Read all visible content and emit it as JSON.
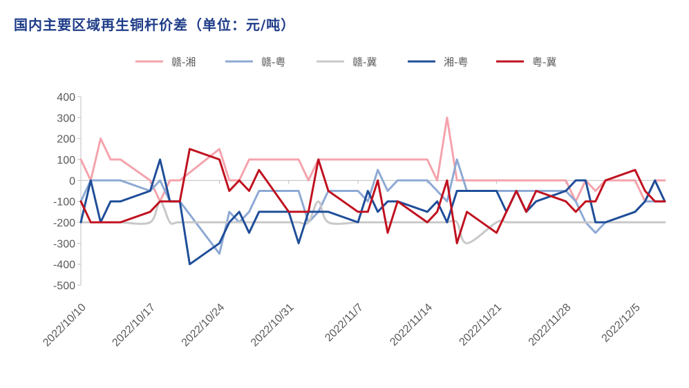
{
  "title": "国内主要区域再生铜杆价差（单位：元/吨）",
  "colors": {
    "title": "#1F3C88",
    "axis": "#BFBFBF",
    "tick_text": "#595959"
  },
  "chart_data": {
    "type": "line",
    "title": "国内主要区域再生铜杆价差（单位：元/吨）",
    "xlabel": "",
    "ylabel": "",
    "ylim": [
      -500,
      400
    ],
    "y_ticks": [
      400,
      300,
      200,
      100,
      0,
      -100,
      -200,
      -300,
      -400,
      -500
    ],
    "x_tick_labels": [
      "2022/10/10",
      "2022/10/17",
      "2022/10/24",
      "2022/10/31",
      "2022/11/7",
      "2022/11/14",
      "2022/11/21",
      "2022/11/28",
      "2022/12/5"
    ],
    "x_tick_dates": [
      "2022-10-10",
      "2022-10-17",
      "2022-10-24",
      "2022-10-31",
      "2022-11-07",
      "2022-11-14",
      "2022-11-21",
      "2022-11-28",
      "2022-12-05"
    ],
    "x_range": [
      "2022-10-10",
      "2022-12-08"
    ],
    "grid": false,
    "legend_position": "top",
    "series": [
      {
        "name": "赣-湘",
        "color": "#F4A3AC",
        "smooth": false,
        "x": [
          "2022-10-10",
          "2022-10-11",
          "2022-10-12",
          "2022-10-13",
          "2022-10-14",
          "2022-10-17",
          "2022-10-18",
          "2022-10-19",
          "2022-10-20",
          "2022-10-24",
          "2022-10-25",
          "2022-10-26",
          "2022-10-27",
          "2022-10-28",
          "2022-10-31",
          "2022-11-01",
          "2022-11-02",
          "2022-11-03",
          "2022-11-04",
          "2022-11-07",
          "2022-11-08",
          "2022-11-09",
          "2022-11-10",
          "2022-11-11",
          "2022-11-14",
          "2022-11-15",
          "2022-11-16",
          "2022-11-17",
          "2022-11-18",
          "2022-11-21",
          "2022-11-22",
          "2022-11-23",
          "2022-11-24",
          "2022-11-25",
          "2022-11-28",
          "2022-11-29",
          "2022-11-30",
          "2022-12-01",
          "2022-12-02",
          "2022-12-05",
          "2022-12-06",
          "2022-12-07",
          "2022-12-08"
        ],
        "y": [
          100,
          0,
          200,
          100,
          100,
          0,
          -100,
          0,
          0,
          150,
          0,
          0,
          100,
          100,
          100,
          100,
          0,
          100,
          100,
          100,
          100,
          100,
          100,
          100,
          100,
          0,
          300,
          0,
          0,
          0,
          0,
          0,
          0,
          0,
          0,
          -100,
          0,
          -50,
          0,
          0,
          -100,
          0,
          0
        ]
      },
      {
        "name": "赣-粤",
        "color": "#8EA9D4",
        "smooth": false,
        "x": [
          "2022-10-10",
          "2022-10-11",
          "2022-10-12",
          "2022-10-13",
          "2022-10-14",
          "2022-10-17",
          "2022-10-18",
          "2022-10-19",
          "2022-10-20",
          "2022-10-24",
          "2022-10-25",
          "2022-10-26",
          "2022-10-27",
          "2022-10-28",
          "2022-10-31",
          "2022-11-01",
          "2022-11-02",
          "2022-11-03",
          "2022-11-04",
          "2022-11-07",
          "2022-11-08",
          "2022-11-09",
          "2022-11-10",
          "2022-11-11",
          "2022-11-14",
          "2022-11-15",
          "2022-11-16",
          "2022-11-17",
          "2022-11-18",
          "2022-11-21",
          "2022-11-22",
          "2022-11-23",
          "2022-11-24",
          "2022-11-25",
          "2022-11-28",
          "2022-11-29",
          "2022-11-30",
          "2022-12-01",
          "2022-12-02",
          "2022-12-05",
          "2022-12-06",
          "2022-12-07",
          "2022-12-08"
        ],
        "y": [
          -100,
          0,
          0,
          0,
          0,
          -50,
          0,
          -100,
          -100,
          -350,
          -150,
          -200,
          -150,
          -50,
          -50,
          -50,
          -200,
          -150,
          -50,
          -50,
          -100,
          50,
          -50,
          0,
          0,
          -50,
          -100,
          100,
          -50,
          -50,
          -50,
          -50,
          -50,
          -50,
          -50,
          -100,
          -200,
          -250,
          -200,
          -150,
          -100,
          -100,
          -100
        ]
      },
      {
        "name": "赣-冀",
        "color": "#C8C8C8",
        "smooth": true,
        "x": [
          "2022-10-10",
          "2022-10-11",
          "2022-10-12",
          "2022-10-13",
          "2022-10-14",
          "2022-10-17",
          "2022-10-18",
          "2022-10-19",
          "2022-10-20",
          "2022-10-24",
          "2022-10-25",
          "2022-10-26",
          "2022-10-27",
          "2022-10-28",
          "2022-10-31",
          "2022-11-01",
          "2022-11-02",
          "2022-11-03",
          "2022-11-04",
          "2022-11-07",
          "2022-11-08",
          "2022-11-09",
          "2022-11-10",
          "2022-11-11",
          "2022-11-14",
          "2022-11-15",
          "2022-11-16",
          "2022-11-17",
          "2022-11-18",
          "2022-11-21",
          "2022-11-22",
          "2022-11-23",
          "2022-11-24",
          "2022-11-25",
          "2022-11-28",
          "2022-11-29",
          "2022-11-30",
          "2022-12-01",
          "2022-12-02",
          "2022-12-05",
          "2022-12-06",
          "2022-12-07",
          "2022-12-08"
        ],
        "y": [
          -200,
          -200,
          -200,
          -200,
          -200,
          -200,
          -100,
          -200,
          -200,
          -200,
          -200,
          -200,
          -200,
          -200,
          -200,
          -200,
          -200,
          -100,
          -200,
          -200,
          -200,
          -200,
          -200,
          -200,
          -200,
          -200,
          -200,
          -200,
          -300,
          -200,
          -200,
          -200,
          -200,
          -200,
          -200,
          -200,
          -200,
          -200,
          -200,
          -200,
          -200,
          -200,
          -200
        ]
      },
      {
        "name": "湘-粤",
        "color": "#1F4E99",
        "smooth": false,
        "x": [
          "2022-10-10",
          "2022-10-11",
          "2022-10-12",
          "2022-10-13",
          "2022-10-14",
          "2022-10-17",
          "2022-10-18",
          "2022-10-19",
          "2022-10-20",
          "2022-10-21",
          "2022-10-24",
          "2022-10-25",
          "2022-10-26",
          "2022-10-27",
          "2022-10-28",
          "2022-10-31",
          "2022-11-01",
          "2022-11-02",
          "2022-11-03",
          "2022-11-04",
          "2022-11-07",
          "2022-11-08",
          "2022-11-09",
          "2022-11-10",
          "2022-11-11",
          "2022-11-14",
          "2022-11-15",
          "2022-11-16",
          "2022-11-17",
          "2022-11-18",
          "2022-11-21",
          "2022-11-22",
          "2022-11-23",
          "2022-11-24",
          "2022-11-25",
          "2022-11-28",
          "2022-11-29",
          "2022-11-30",
          "2022-12-01",
          "2022-12-02",
          "2022-12-05",
          "2022-12-06",
          "2022-12-07",
          "2022-12-08"
        ],
        "y": [
          -200,
          0,
          -200,
          -100,
          -100,
          -50,
          100,
          -100,
          -100,
          -400,
          -300,
          -200,
          -150,
          -250,
          -150,
          -150,
          -300,
          -150,
          -150,
          -150,
          -200,
          -50,
          -150,
          -100,
          -100,
          -150,
          -100,
          -200,
          -50,
          -50,
          -50,
          -150,
          -50,
          -150,
          -100,
          -50,
          0,
          0,
          -200,
          -200,
          -150,
          -100,
          0,
          -100
        ]
      },
      {
        "name": "粤-冀",
        "color": "#C0111F",
        "smooth": false,
        "x": [
          "2022-10-10",
          "2022-10-11",
          "2022-10-12",
          "2022-10-13",
          "2022-10-14",
          "2022-10-17",
          "2022-10-18",
          "2022-10-19",
          "2022-10-20",
          "2022-10-21",
          "2022-10-24",
          "2022-10-25",
          "2022-10-26",
          "2022-10-27",
          "2022-10-28",
          "2022-10-31",
          "2022-11-01",
          "2022-11-02",
          "2022-11-03",
          "2022-11-04",
          "2022-11-07",
          "2022-11-08",
          "2022-11-09",
          "2022-11-10",
          "2022-11-11",
          "2022-11-14",
          "2022-11-15",
          "2022-11-16",
          "2022-11-17",
          "2022-11-18",
          "2022-11-21",
          "2022-11-22",
          "2022-11-23",
          "2022-11-24",
          "2022-11-25",
          "2022-11-28",
          "2022-11-29",
          "2022-11-30",
          "2022-12-01",
          "2022-12-02",
          "2022-12-05",
          "2022-12-06",
          "2022-12-07",
          "2022-12-08"
        ],
        "y": [
          -100,
          -200,
          -200,
          -200,
          -200,
          -150,
          -100,
          -100,
          -100,
          150,
          100,
          -50,
          0,
          -50,
          50,
          -150,
          -150,
          -150,
          100,
          -50,
          -150,
          -150,
          0,
          -250,
          -100,
          -200,
          -150,
          0,
          -300,
          -150,
          -250,
          -150,
          -50,
          -150,
          -50,
          -100,
          -150,
          -100,
          -100,
          0,
          50,
          -50,
          -100,
          -100
        ]
      }
    ]
  }
}
